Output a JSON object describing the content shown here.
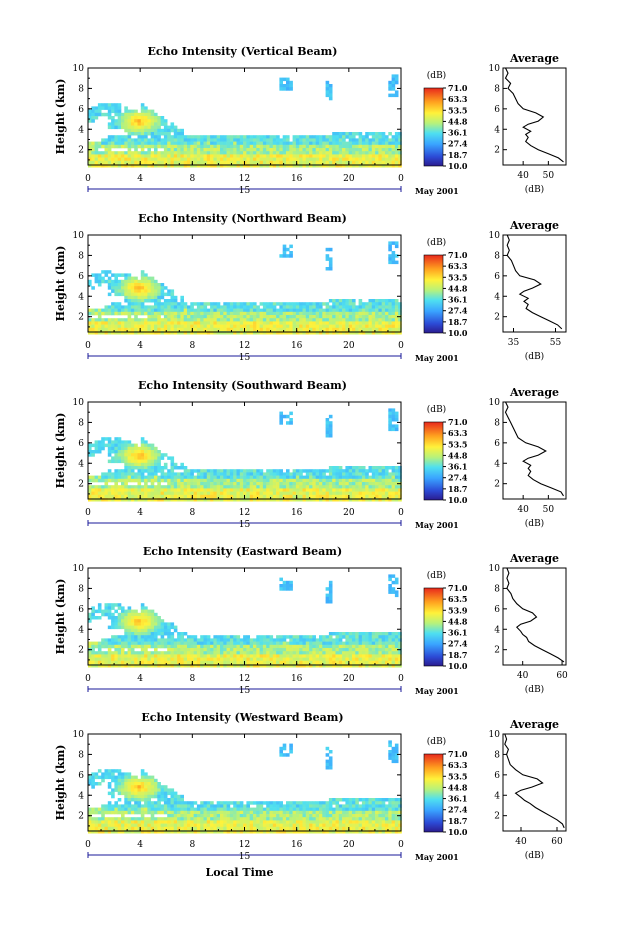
{
  "chart_data": [
    {
      "type": "heatmap",
      "title": "Echo Intensity (Vertical Beam)",
      "ylabel": "Height (km)",
      "x_ticks": [
        "0",
        "4",
        "8",
        "12",
        "16",
        "20",
        "0"
      ],
      "y_ticks": [
        "2",
        "4",
        "6",
        "8",
        "10"
      ],
      "xlim": [
        0,
        24
      ],
      "ylim": [
        0.5,
        10
      ],
      "date_day": "15",
      "date_label": "May 2001",
      "colorbar": {
        "unit": "(dB)",
        "ticks": [
          "71.0",
          "63.3",
          "53.5",
          "44.8",
          "36.1",
          "27.4",
          "18.7",
          "10.0"
        ]
      },
      "average_profile": {
        "title": "Average",
        "xlabel": "(dB)",
        "x_ticks": [
          "40",
          "50"
        ],
        "xlim": [
          32,
          57
        ],
        "y_ticks": [
          "2",
          "4",
          "6",
          "8",
          "10"
        ],
        "points": [
          [
            33,
            10
          ],
          [
            34,
            9.5
          ],
          [
            33,
            9
          ],
          [
            35,
            8.5
          ],
          [
            34,
            8
          ],
          [
            36,
            7.5
          ],
          [
            37,
            7
          ],
          [
            38,
            6.5
          ],
          [
            40,
            6
          ],
          [
            45,
            5.6
          ],
          [
            48,
            5.2
          ],
          [
            46,
            4.8
          ],
          [
            42,
            4.5
          ],
          [
            40,
            4.2
          ],
          [
            43,
            3.8
          ],
          [
            41,
            3.5
          ],
          [
            42,
            3.2
          ],
          [
            41,
            2.8
          ],
          [
            43,
            2.4
          ],
          [
            46,
            2
          ],
          [
            50,
            1.6
          ],
          [
            54,
            1.2
          ],
          [
            56,
            0.8
          ]
        ]
      }
    },
    {
      "type": "heatmap",
      "title": "Echo Intensity (Northward Beam)",
      "ylabel": "Height (km)",
      "x_ticks": [
        "0",
        "4",
        "8",
        "12",
        "16",
        "20",
        "0"
      ],
      "y_ticks": [
        "2",
        "4",
        "6",
        "8",
        "10"
      ],
      "xlim": [
        0,
        24
      ],
      "ylim": [
        0.5,
        10
      ],
      "date_day": "15",
      "date_label": "May 2001",
      "colorbar": {
        "unit": "(dB)",
        "ticks": [
          "71.0",
          "63.3",
          "53.5",
          "44.8",
          "36.1",
          "27.4",
          "18.7",
          "10.0"
        ]
      },
      "average_profile": {
        "title": "Average",
        "xlabel": "(dB)",
        "x_ticks": [
          "35",
          "55"
        ],
        "xlim": [
          30,
          60
        ],
        "y_ticks": [
          "2",
          "4",
          "6",
          "8",
          "10"
        ],
        "points": [
          [
            32,
            10
          ],
          [
            33,
            9.5
          ],
          [
            32,
            9
          ],
          [
            33,
            8.5
          ],
          [
            32,
            8
          ],
          [
            34,
            7.5
          ],
          [
            35,
            7
          ],
          [
            36,
            6.5
          ],
          [
            38,
            6
          ],
          [
            45,
            5.6
          ],
          [
            48,
            5.2
          ],
          [
            44,
            4.8
          ],
          [
            40,
            4.5
          ],
          [
            38,
            4.2
          ],
          [
            42,
            3.8
          ],
          [
            40,
            3.5
          ],
          [
            42,
            3.2
          ],
          [
            41,
            2.8
          ],
          [
            44,
            2.4
          ],
          [
            48,
            2
          ],
          [
            52,
            1.6
          ],
          [
            56,
            1.2
          ],
          [
            58,
            0.8
          ]
        ]
      }
    },
    {
      "type": "heatmap",
      "title": "Echo Intensity (Southward Beam)",
      "ylabel": "Height (km)",
      "x_ticks": [
        "0",
        "4",
        "8",
        "12",
        "16",
        "20",
        "0"
      ],
      "y_ticks": [
        "2",
        "4",
        "6",
        "8",
        "10"
      ],
      "xlim": [
        0,
        24
      ],
      "ylim": [
        0.5,
        10
      ],
      "date_day": "15",
      "date_label": "May 2001",
      "colorbar": {
        "unit": "(dB)",
        "ticks": [
          "71.0",
          "63.3",
          "53.5",
          "44.8",
          "36.1",
          "27.4",
          "18.7",
          "10.0"
        ]
      },
      "average_profile": {
        "title": "Average",
        "xlabel": "(dB)",
        "x_ticks": [
          "40",
          "50"
        ],
        "xlim": [
          32,
          57
        ],
        "y_ticks": [
          "2",
          "4",
          "6",
          "8",
          "10"
        ],
        "points": [
          [
            33,
            10
          ],
          [
            34,
            9.5
          ],
          [
            33,
            9
          ],
          [
            34,
            8.5
          ],
          [
            35,
            8
          ],
          [
            36,
            7.5
          ],
          [
            37,
            7
          ],
          [
            38,
            6.5
          ],
          [
            41,
            6
          ],
          [
            46,
            5.6
          ],
          [
            49,
            5.2
          ],
          [
            46,
            4.8
          ],
          [
            42,
            4.5
          ],
          [
            40,
            4.2
          ],
          [
            43,
            3.8
          ],
          [
            42,
            3.5
          ],
          [
            43,
            3.2
          ],
          [
            42,
            2.8
          ],
          [
            44,
            2.4
          ],
          [
            47,
            2
          ],
          [
            51,
            1.6
          ],
          [
            55,
            1.2
          ],
          [
            56,
            0.8
          ]
        ]
      }
    },
    {
      "type": "heatmap",
      "title": "Echo Intensity (Eastward Beam)",
      "ylabel": "Height (km)",
      "x_ticks": [
        "0",
        "4",
        "8",
        "12",
        "16",
        "20",
        "0"
      ],
      "y_ticks": [
        "2",
        "4",
        "6",
        "8",
        "10"
      ],
      "xlim": [
        0,
        24
      ],
      "ylim": [
        0.5,
        10
      ],
      "date_day": "15",
      "date_label": "May 2001",
      "colorbar": {
        "unit": "(dB)",
        "ticks": [
          "71.0",
          "63.5",
          "53.9",
          "44.8",
          "36.1",
          "27.4",
          "18.7",
          "10.0"
        ]
      },
      "average_profile": {
        "title": "Average",
        "xlabel": "(dB)",
        "x_ticks": [
          "40",
          "60"
        ],
        "xlim": [
          30,
          62
        ],
        "y_ticks": [
          "2",
          "4",
          "6",
          "8",
          "10"
        ],
        "points": [
          [
            32,
            10
          ],
          [
            33,
            9.5
          ],
          [
            32,
            9
          ],
          [
            33,
            8.5
          ],
          [
            32,
            8
          ],
          [
            34,
            7.5
          ],
          [
            35,
            7
          ],
          [
            37,
            6.5
          ],
          [
            40,
            6
          ],
          [
            45,
            5.6
          ],
          [
            47,
            5.2
          ],
          [
            44,
            4.8
          ],
          [
            39,
            4.5
          ],
          [
            37,
            4.2
          ],
          [
            39,
            3.8
          ],
          [
            40,
            3.5
          ],
          [
            42,
            3.2
          ],
          [
            43,
            2.8
          ],
          [
            46,
            2.4
          ],
          [
            50,
            2
          ],
          [
            54,
            1.6
          ],
          [
            58,
            1.2
          ],
          [
            61,
            0.8
          ]
        ]
      }
    },
    {
      "type": "heatmap",
      "title": "Echo Intensity (Westward Beam)",
      "ylabel": "Height (km)",
      "xlabel": "Local Time",
      "x_ticks": [
        "0",
        "4",
        "8",
        "12",
        "16",
        "20",
        "0"
      ],
      "y_ticks": [
        "2",
        "4",
        "6",
        "8",
        "10"
      ],
      "xlim": [
        0,
        24
      ],
      "ylim": [
        0.5,
        10
      ],
      "date_day": "15",
      "date_label": "May 2001",
      "colorbar": {
        "unit": "(dB)",
        "ticks": [
          "71.0",
          "63.3",
          "53.5",
          "44.8",
          "36.1",
          "27.4",
          "18.7",
          "10.0"
        ]
      },
      "average_profile": {
        "title": "Average",
        "xlabel": "(dB)",
        "x_ticks": [
          "40",
          "60"
        ],
        "xlim": [
          30,
          65
        ],
        "y_ticks": [
          "2",
          "4",
          "6",
          "8",
          "10"
        ],
        "points": [
          [
            31,
            10
          ],
          [
            32,
            9.5
          ],
          [
            31,
            9
          ],
          [
            33,
            8.5
          ],
          [
            32,
            8
          ],
          [
            33,
            7.5
          ],
          [
            34,
            7
          ],
          [
            37,
            6.5
          ],
          [
            41,
            6
          ],
          [
            49,
            5.6
          ],
          [
            52,
            5.2
          ],
          [
            46,
            4.8
          ],
          [
            40,
            4.5
          ],
          [
            37,
            4.2
          ],
          [
            40,
            3.8
          ],
          [
            42,
            3.5
          ],
          [
            45,
            3.2
          ],
          [
            48,
            2.8
          ],
          [
            52,
            2.4
          ],
          [
            56,
            2
          ],
          [
            60,
            1.6
          ],
          [
            63,
            1.2
          ],
          [
            64,
            0.8
          ]
        ]
      }
    }
  ]
}
